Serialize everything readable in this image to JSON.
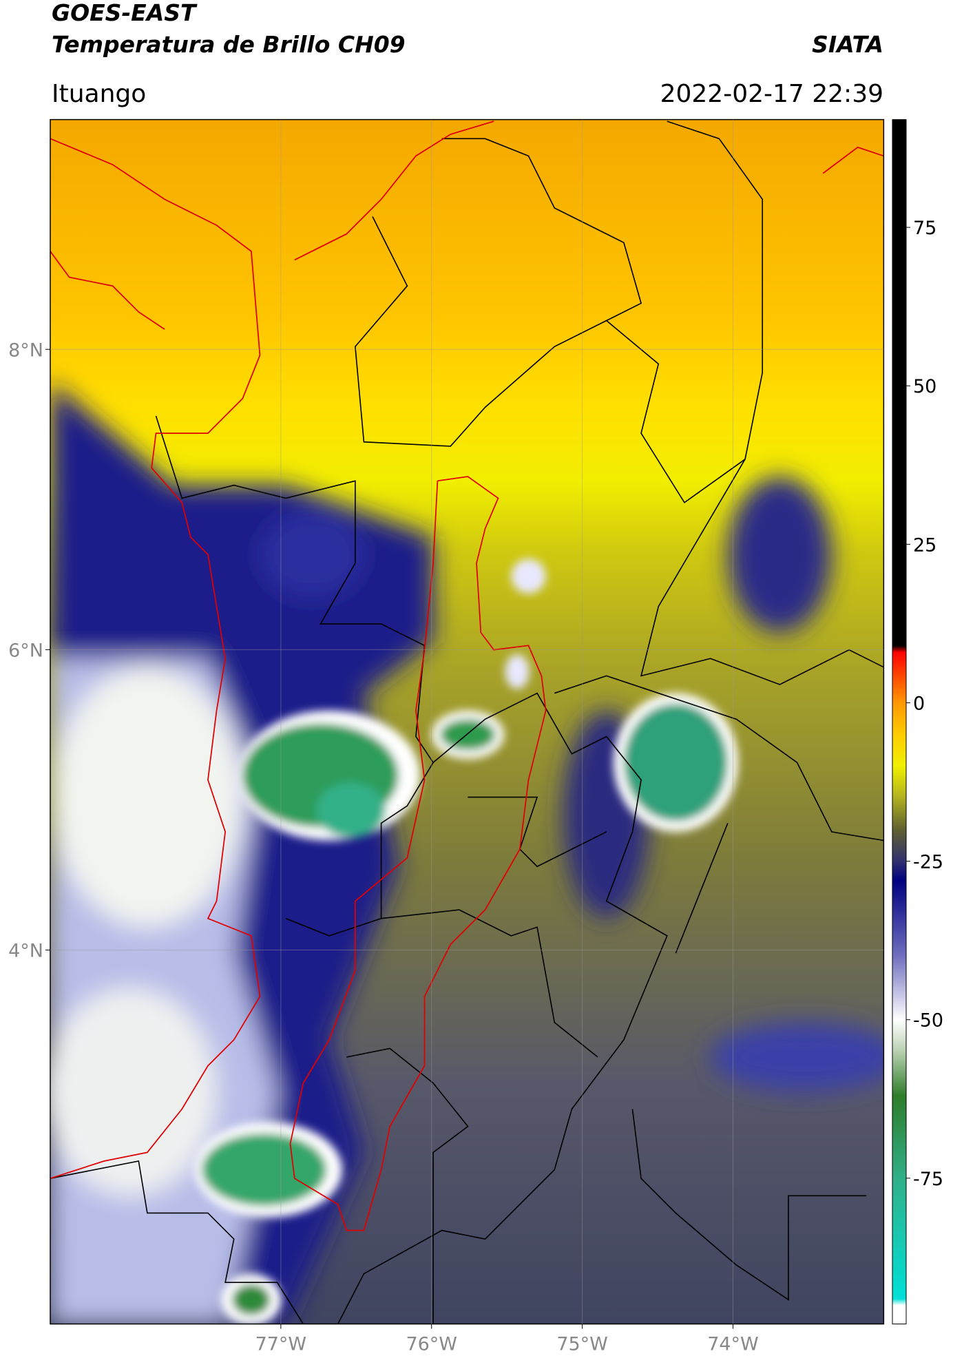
{
  "map": {
    "title": "GOES-EAST",
    "subtitle": "Temperatura de Brillo CH09",
    "source": "SIATA",
    "location": "Ituango",
    "datetime": "2022-02-17 22:39",
    "xlim": [
      -78.53,
      -73.0
    ],
    "ylim": [
      1.51,
      9.53
    ],
    "xticks": [
      {
        "value": -77,
        "label": "77°W"
      },
      {
        "value": -76,
        "label": "76°W"
      },
      {
        "value": -75,
        "label": "75°W"
      },
      {
        "value": -74,
        "label": "74°W"
      }
    ],
    "yticks": [
      {
        "value": 8,
        "label": "8°N"
      },
      {
        "value": 6,
        "label": "6°N"
      },
      {
        "value": 4,
        "label": "4°N"
      }
    ],
    "grid": true,
    "colorbar": {
      "lim": [
        -98,
        92
      ],
      "ticks": [
        75,
        50,
        25,
        0,
        -25,
        -50,
        -75
      ],
      "colormap": [
        {
          "value": -98,
          "color": "#ffffff"
        },
        {
          "value": -95,
          "color": "#ffffff"
        },
        {
          "value": -94,
          "color": "#00e0d8"
        },
        {
          "value": -75,
          "color": "#30b088"
        },
        {
          "value": -62,
          "color": "#2e7d2a"
        },
        {
          "value": -55,
          "color": "#b8d0b0"
        },
        {
          "value": -50,
          "color": "#ffffff"
        },
        {
          "value": -40,
          "color": "#7070c0"
        },
        {
          "value": -28,
          "color": "#000080"
        },
        {
          "value": -25,
          "color": "#303070"
        },
        {
          "value": -20,
          "color": "#606030"
        },
        {
          "value": -15,
          "color": "#b0b020"
        },
        {
          "value": -10,
          "color": "#f0f000"
        },
        {
          "value": -5,
          "color": "#ffcc00"
        },
        {
          "value": 0,
          "color": "#ff9900"
        },
        {
          "value": 8,
          "color": "#ff0000"
        },
        {
          "value": 9,
          "color": "#000000"
        },
        {
          "value": 92,
          "color": "#000000"
        }
      ]
    }
  }
}
